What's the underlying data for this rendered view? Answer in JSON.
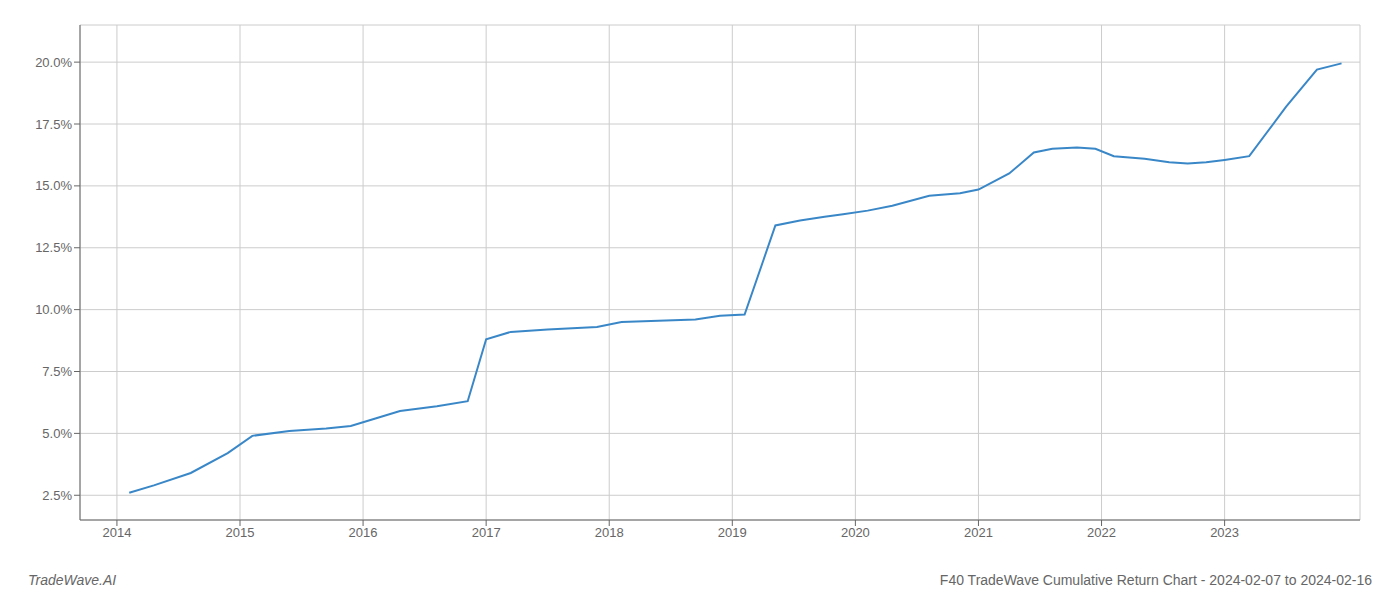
{
  "chart_data": {
    "type": "line",
    "title": "F40 TradeWave Cumulative Return Chart - 2024-02-07 to 2024-02-16",
    "annotations": [
      "TradeWave.AI"
    ],
    "x": [
      2014.1,
      2014.3,
      2014.6,
      2014.9,
      2015.1,
      2015.4,
      2015.7,
      2015.9,
      2016.1,
      2016.3,
      2016.6,
      2016.85,
      2017.0,
      2017.2,
      2017.5,
      2017.7,
      2017.9,
      2018.1,
      2018.4,
      2018.7,
      2018.9,
      2019.1,
      2019.35,
      2019.55,
      2019.75,
      2019.9,
      2020.1,
      2020.3,
      2020.6,
      2020.85,
      2021.0,
      2021.25,
      2021.45,
      2021.6,
      2021.8,
      2021.95,
      2022.1,
      2022.35,
      2022.55,
      2022.7,
      2022.85,
      2023.0,
      2023.2,
      2023.5,
      2023.75,
      2023.95
    ],
    "values": [
      2.6,
      2.9,
      3.4,
      4.2,
      4.9,
      5.1,
      5.2,
      5.3,
      5.6,
      5.9,
      6.1,
      6.3,
      8.8,
      9.1,
      9.2,
      9.25,
      9.3,
      9.5,
      9.55,
      9.6,
      9.75,
      9.8,
      13.4,
      13.6,
      13.75,
      13.85,
      14.0,
      14.2,
      14.6,
      14.7,
      14.85,
      15.5,
      16.35,
      16.5,
      16.55,
      16.5,
      16.2,
      16.1,
      15.95,
      15.9,
      15.95,
      16.05,
      16.2,
      18.2,
      19.7,
      19.95
    ],
    "color": "#3a87c8",
    "xlim": [
      2013.7,
      2024.1
    ],
    "ylim": [
      1.5,
      21.5
    ],
    "xticks": [
      2014,
      2015,
      2016,
      2017,
      2018,
      2019,
      2020,
      2021,
      2022,
      2023
    ],
    "yticks": [
      {
        "value": 2.5,
        "label": "2.5%"
      },
      {
        "value": 5.0,
        "label": "5.0%"
      },
      {
        "value": 7.5,
        "label": "7.5%"
      },
      {
        "value": 10.0,
        "label": "10.0%"
      },
      {
        "value": 12.5,
        "label": "12.5%"
      },
      {
        "value": 15.0,
        "label": "15.0%"
      },
      {
        "value": 17.5,
        "label": "17.5%"
      },
      {
        "value": 20.0,
        "label": "20.0%"
      }
    ],
    "grid": true
  }
}
